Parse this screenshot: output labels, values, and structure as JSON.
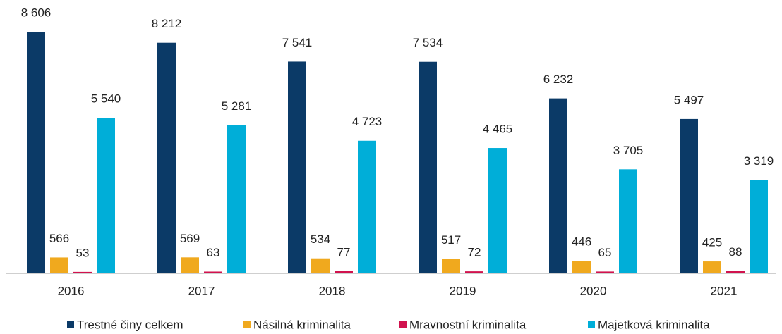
{
  "chart_data": {
    "type": "bar",
    "categories": [
      "2016",
      "2017",
      "2018",
      "2019",
      "2020",
      "2021"
    ],
    "series": [
      {
        "name": "Trestné činy celkem",
        "color": "#0b3a67",
        "values": [
          8606,
          8212,
          7541,
          7534,
          6232,
          5497
        ],
        "value_labels": [
          "8 606",
          "8 212",
          "7 541",
          "7 534",
          "6 232",
          "5 497"
        ]
      },
      {
        "name": "Násilná kriminalita",
        "color": "#f0a91e",
        "values": [
          566,
          569,
          534,
          517,
          446,
          425
        ],
        "value_labels": [
          "566",
          "569",
          "534",
          "517",
          "446",
          "425"
        ]
      },
      {
        "name": "Mravnostní kriminalita",
        "color": "#d1124e",
        "values": [
          53,
          63,
          77,
          72,
          65,
          88
        ],
        "value_labels": [
          "53",
          "63",
          "77",
          "72",
          "65",
          "88"
        ]
      },
      {
        "name": "Majetková kriminalita",
        "color": "#00aed8",
        "values": [
          5540,
          5281,
          4723,
          4465,
          3705,
          3319
        ],
        "value_labels": [
          "5 540",
          "5 281",
          "4 723",
          "4 465",
          "3 705",
          "3 319"
        ]
      }
    ],
    "legend": "bottom"
  }
}
